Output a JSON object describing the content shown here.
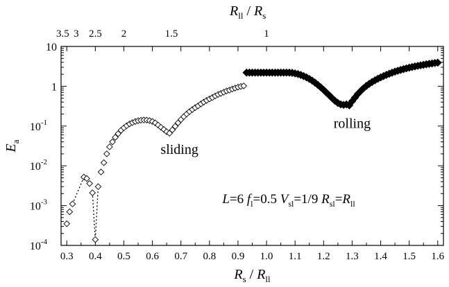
{
  "chart_data": {
    "type": "scatter",
    "title": "",
    "xlabel": {
      "main": "R",
      "main_sub": "s",
      "sep": " / ",
      "denom": "R",
      "denom_sub": "ll"
    },
    "ylabel": {
      "main": "E",
      "sub": "a"
    },
    "top_xlabel": {
      "main": "R",
      "main_sub": "ll",
      "sep": " / ",
      "denom": "R",
      "denom_sub": "s"
    },
    "x_scale": "linear",
    "y_scale": "log",
    "xlim": [
      0.28,
      1.62
    ],
    "ylim": [
      0.0001,
      10
    ],
    "x_ticks": [
      0.3,
      0.4,
      0.5,
      0.6,
      0.7,
      0.8,
      0.9,
      1.0,
      1.1,
      1.2,
      1.3,
      1.4,
      1.5,
      1.6
    ],
    "x_tick_labels": [
      "0.3",
      "0.4",
      "0.5",
      "0.6",
      "0.7",
      "0.8",
      "0.9",
      "1.0",
      "1.1",
      "1.2",
      "1.3",
      "1.4",
      "1.5",
      "1.6"
    ],
    "y_ticks": [
      0.0001,
      0.001,
      0.01,
      0.1,
      1,
      10
    ],
    "y_tick_labels": [
      {
        "base": "10",
        "exp": "-4"
      },
      {
        "base": "10",
        "exp": "-3"
      },
      {
        "base": "10",
        "exp": "-2"
      },
      {
        "base": "10",
        "exp": "-1"
      },
      {
        "base": "1",
        "exp": ""
      },
      {
        "base": "10",
        "exp": ""
      }
    ],
    "top_ticks": [
      {
        "value": 3.5,
        "label": "3.5"
      },
      {
        "value": 3,
        "label": "3"
      },
      {
        "value": 2.5,
        "label": "2.5"
      },
      {
        "value": 2,
        "label": "2"
      },
      {
        "value": 1.5,
        "label": "1.5"
      },
      {
        "value": 1,
        "label": "1"
      }
    ],
    "annotations": {
      "sliding": {
        "text": "sliding",
        "x": 0.695,
        "y": 0.02
      },
      "rolling": {
        "text": "rolling",
        "x": 1.3,
        "y": 0.09
      },
      "params": {
        "x": 0.845,
        "y": 0.00115,
        "items": [
          {
            "main": "L",
            "sub": "",
            "rest": "=6  "
          },
          {
            "main": "f",
            "sub": "l",
            "rest": "=0.5  "
          },
          {
            "main": "V",
            "sub": "sl",
            "rest": "=1/9  "
          },
          {
            "main": "R",
            "sub": "sl",
            "rest": "="
          },
          {
            "main": "R",
            "sub": "ll",
            "rest": ""
          }
        ]
      }
    },
    "series": [
      {
        "marker": "open-diamond",
        "x": [
          0.3,
          0.31,
          0.32,
          0.36,
          0.37,
          0.38,
          0.39,
          0.4,
          0.41,
          0.42,
          0.43,
          0.44,
          0.45,
          0.46,
          0.47,
          0.48,
          0.49,
          0.5,
          0.51,
          0.52,
          0.53,
          0.54,
          0.55,
          0.56,
          0.57,
          0.58,
          0.59,
          0.6,
          0.61,
          0.62,
          0.63,
          0.64,
          0.65,
          0.66,
          0.67,
          0.68,
          0.69,
          0.7,
          0.71,
          0.72,
          0.73,
          0.74,
          0.75,
          0.76,
          0.77,
          0.78,
          0.79,
          0.8,
          0.81,
          0.82,
          0.83,
          0.84,
          0.85,
          0.86,
          0.87,
          0.88,
          0.89,
          0.9,
          0.91,
          0.92
        ],
        "y": [
          0.00035,
          0.0007,
          0.0011,
          0.0052,
          0.0048,
          0.0036,
          0.0021,
          0.00014,
          0.003,
          0.007,
          0.012,
          0.02,
          0.03,
          0.04,
          0.052,
          0.064,
          0.078,
          0.09,
          0.102,
          0.113,
          0.122,
          0.13,
          0.136,
          0.14,
          0.142,
          0.141,
          0.137,
          0.13,
          0.12,
          0.106,
          0.093,
          0.082,
          0.072,
          0.066,
          0.08,
          0.098,
          0.12,
          0.145,
          0.172,
          0.2,
          0.23,
          0.26,
          0.29,
          0.32,
          0.36,
          0.4,
          0.44,
          0.48,
          0.52,
          0.57,
          0.62,
          0.66,
          0.71,
          0.76,
          0.8,
          0.85,
          0.9,
          0.95,
          0.99,
          1.02
        ]
      },
      {
        "marker": "filled-diamond",
        "note": "",
        "x": [
          0.93,
          0.94,
          0.95,
          0.96,
          0.97,
          0.98,
          0.99,
          1.0,
          1.01,
          1.02,
          1.03,
          1.04,
          1.05,
          1.06,
          1.07,
          1.08,
          1.09,
          1.1,
          1.11,
          1.12,
          1.13,
          1.14,
          1.15,
          1.16,
          1.17,
          1.18,
          1.19,
          1.2,
          1.21,
          1.22,
          1.23,
          1.24,
          1.25,
          1.26,
          1.27,
          1.28,
          1.29,
          1.3,
          1.31,
          1.32,
          1.33,
          1.34,
          1.35,
          1.36,
          1.37,
          1.38,
          1.39,
          1.4,
          1.41,
          1.42,
          1.43,
          1.44,
          1.45,
          1.46,
          1.47,
          1.48,
          1.49,
          1.5,
          1.51,
          1.52,
          1.53,
          1.54,
          1.55,
          1.56,
          1.57,
          1.58,
          1.59,
          1.6
        ],
        "y": [
          2.2,
          2.2,
          2.2,
          2.2,
          2.2,
          2.2,
          2.2,
          2.2,
          2.2,
          2.2,
          2.2,
          2.2,
          2.2,
          2.2,
          2.2,
          2.2,
          2.17,
          2.1,
          2.02,
          1.92,
          1.8,
          1.67,
          1.53,
          1.38,
          1.23,
          1.08,
          0.94,
          0.81,
          0.69,
          0.59,
          0.5,
          0.43,
          0.38,
          0.35,
          0.34,
          0.35,
          0.33,
          0.42,
          0.52,
          0.64,
          0.76,
          0.89,
          1.02,
          1.15,
          1.28,
          1.41,
          1.54,
          1.67,
          1.8,
          1.93,
          2.06,
          2.19,
          2.32,
          2.45,
          2.57,
          2.69,
          2.81,
          2.93,
          3.04,
          3.15,
          3.26,
          3.36,
          3.46,
          3.56,
          3.65,
          3.74,
          3.83,
          3.92
        ]
      }
    ],
    "dotted_segments": [
      {
        "x": [
          0.32,
          0.36
        ],
        "y": [
          0.0011,
          0.0052
        ]
      },
      {
        "x": [
          0.39,
          0.4,
          0.41
        ],
        "y": [
          0.0021,
          0.00014,
          0.003
        ]
      }
    ]
  }
}
